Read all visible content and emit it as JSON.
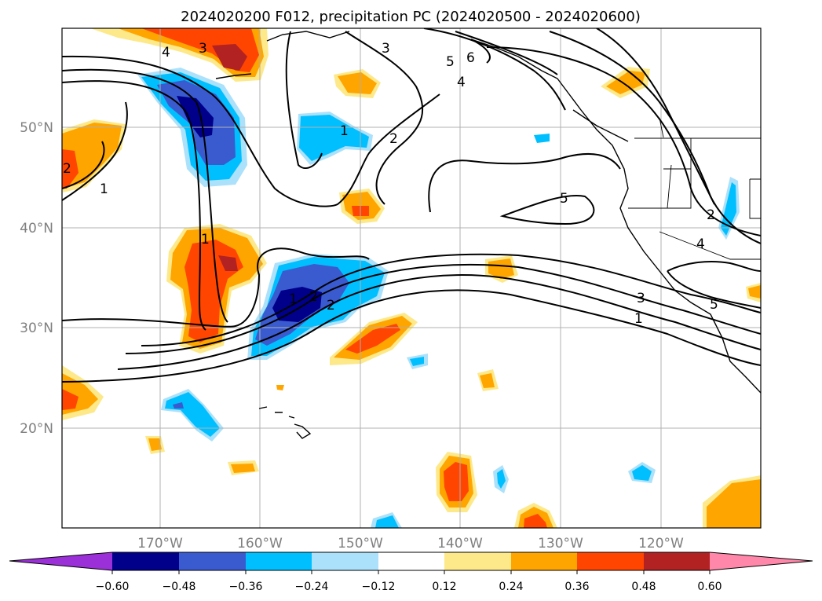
{
  "title": "2024020200 F012, precipitation PC (2024020500 - 2024020600)",
  "map": {
    "lat_labels": [
      "50°N",
      "40°N",
      "30°N",
      "20°N"
    ],
    "lon_labels": [
      "170°W",
      "160°W",
      "150°W",
      "140°W",
      "130°W",
      "120°W"
    ],
    "contour_labels": [
      "4",
      "3",
      "3",
      "5",
      "6",
      "4",
      "1",
      "2",
      "2",
      "1",
      "5",
      "1",
      "2",
      "3",
      "1",
      "4",
      "2",
      "2",
      "5",
      "1"
    ]
  },
  "colorbar": {
    "ticks": [
      "−0.60",
      "−0.48",
      "−0.36",
      "−0.24",
      "−0.12",
      "0.12",
      "0.24",
      "0.36",
      "0.48",
      "0.60"
    ],
    "colors": [
      "#9b30d8",
      "#00008b",
      "#3a5bd0",
      "#00bfff",
      "#abe1fb",
      "#ffffff",
      "#fde98a",
      "#ffa500",
      "#ff4500",
      "#b22222",
      "#ff88aa"
    ]
  }
}
